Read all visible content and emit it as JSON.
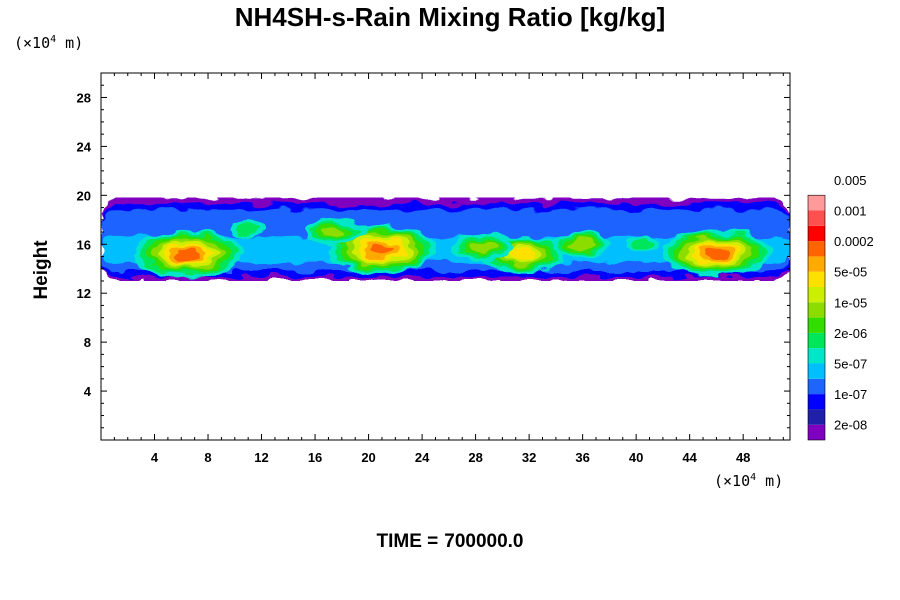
{
  "chart_data": {
    "type": "heatmap",
    "title": "NH4SH-s-Rain Mixing Ratio [kg/kg]",
    "xlabel": "",
    "ylabel": "Height",
    "x_unit_prefix": "(×10",
    "x_unit_exp": "4",
    "x_unit_suffix": " m)",
    "y_unit_prefix": "(×10",
    "y_unit_exp": "4",
    "y_unit_suffix": " m)",
    "xlim": [
      0,
      51.5
    ],
    "ylim": [
      0,
      30
    ],
    "x_ticks": [
      4,
      8,
      12,
      16,
      20,
      24,
      28,
      32,
      36,
      40,
      44,
      48
    ],
    "y_ticks": [
      4,
      8,
      12,
      16,
      20,
      24,
      28
    ],
    "colorbar": {
      "levels": [
        "2e-08",
        "1e-07",
        "5e-07",
        "2e-06",
        "1e-05",
        "5e-05",
        "0.0002",
        "0.001",
        "0.005"
      ],
      "colors": [
        "#7f00bf",
        "#1f1fa8",
        "#0000ff",
        "#1e64ff",
        "#00bfff",
        "#00e6c8",
        "#00e65a",
        "#33dd00",
        "#8cdc00",
        "#ccee00",
        "#ffe100",
        "#ffaa00",
        "#ff6400",
        "#ff0000",
        "#ff5050",
        "#ff9a9a"
      ]
    },
    "band": {
      "x_range": [
        0,
        51.5
      ],
      "y_range": [
        13.0,
        19.8
      ],
      "core_height": 15.5
    },
    "hotspots": [
      {
        "x": 6.5,
        "y": 15.2,
        "level": 12
      },
      {
        "x": 21.0,
        "y": 15.6,
        "level": 12
      },
      {
        "x": 31.5,
        "y": 15.2,
        "level": 10
      },
      {
        "x": 46.0,
        "y": 15.3,
        "level": 12
      },
      {
        "x": 17.5,
        "y": 17.0,
        "level": 8
      },
      {
        "x": 28.5,
        "y": 15.8,
        "level": 8
      },
      {
        "x": 36.0,
        "y": 16.0,
        "level": 8
      },
      {
        "x": 11.0,
        "y": 17.3,
        "level": 6
      },
      {
        "x": 40.5,
        "y": 16.0,
        "level": 6
      }
    ]
  },
  "footer": {
    "time_label": "TIME =",
    "time_value": "700000.0"
  }
}
